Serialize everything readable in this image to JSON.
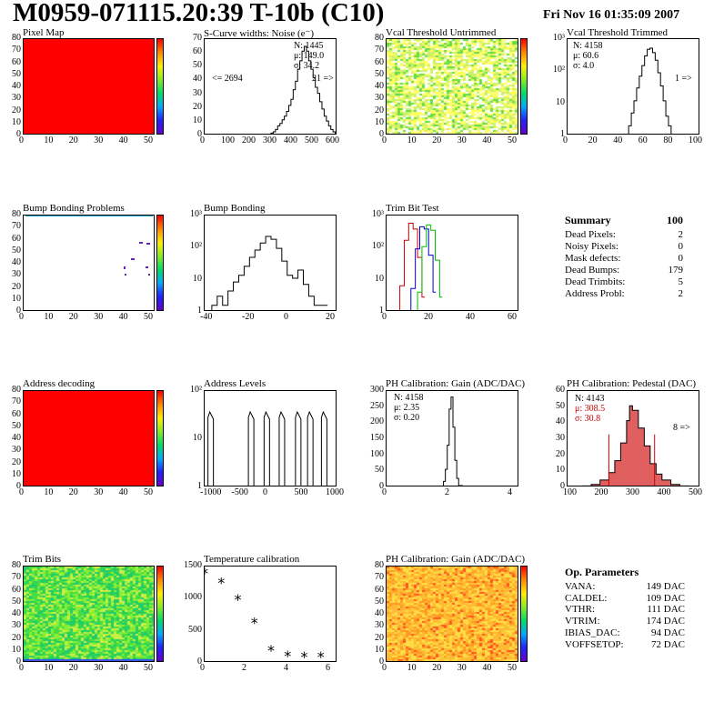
{
  "header": {
    "title": "M0959-071115.20:39 T-10b (C10)",
    "date": "Fri Nov 16 01:35:09 2007"
  },
  "panels": {
    "pixel_map": {
      "title": "Pixel Map"
    },
    "scurve": {
      "title": "S-Curve widths: Noise (e⁻)",
      "stats": [
        "N: 1445",
        "μ: 149.0",
        "σ: 34.2"
      ],
      "under": "<= 2694",
      "over": "21 =>"
    },
    "vcal_untrimmed": {
      "title": "Vcal Threshold Untrimmed"
    },
    "vcal_trimmed": {
      "title": "Vcal Threshold Trimmed",
      "stats": [
        "N: 4158",
        "μ: 60.6",
        "σ: 4.0"
      ],
      "over": "1 =>"
    },
    "bump_problems": {
      "title": "Bump Bonding Problems"
    },
    "bump_bonding": {
      "title": "Bump Bonding"
    },
    "trim_bit_test": {
      "title": "Trim Bit Test"
    },
    "address_decoding": {
      "title": "Address decoding"
    },
    "address_levels": {
      "title": "Address Levels"
    },
    "ph_gain": {
      "title": "PH Calibration: Gain (ADC/DAC)",
      "stats": [
        "N: 4158",
        "μ: 2.35",
        "σ: 0.20"
      ]
    },
    "ph_pedestal": {
      "title": "PH Calibration: Pedestal (DAC)",
      "stats": [
        "N: 4143"
      ],
      "stats_red": [
        "μ: 308.5",
        "σ: 30.8"
      ],
      "over": "8 =>"
    },
    "trim_bits": {
      "title": "Trim Bits"
    },
    "temperature": {
      "title": "Temperature calibration"
    },
    "ph_gain_map": {
      "title": "PH Calibration: Gain (ADC/DAC)"
    }
  },
  "summary": {
    "title": "Summary",
    "total": "100",
    "rows": [
      {
        "label": "Dead Pixels:",
        "value": "2"
      },
      {
        "label": "Noisy Pixels:",
        "value": "0"
      },
      {
        "label": "Mask defects:",
        "value": "0"
      },
      {
        "label": "Dead Bumps:",
        "value": "179"
      },
      {
        "label": "Dead Trimbits:",
        "value": "5"
      },
      {
        "label": "Address Probl:",
        "value": "2"
      }
    ]
  },
  "op_parameters": {
    "title": "Op. Parameters",
    "rows": [
      {
        "label": "VANA:",
        "value": "149 DAC"
      },
      {
        "label": "CALDEL:",
        "value": "109 DAC"
      },
      {
        "label": "VTHR:",
        "value": "111 DAC"
      },
      {
        "label": "VTRIM:",
        "value": "174 DAC"
      },
      {
        "label": "IBIAS_DAC:",
        "value": "94 DAC"
      },
      {
        "label": "VOFFSETOP:",
        "value": "72 DAC"
      }
    ]
  },
  "colors": {
    "map_red": "#ff0000",
    "hist_line": "#000000",
    "trim_red": "#d00000",
    "trim_blue": "#0000dd",
    "trim_green": "#00bb00",
    "pedestal_fill": "#e06060"
  },
  "chart_data": [
    {
      "id": "pixel_map",
      "type": "heatmap",
      "title": "Pixel Map",
      "xlim": [
        0,
        52
      ],
      "ylim": [
        0,
        80
      ],
      "x_ticks": [
        "0",
        "10",
        "20",
        "30",
        "40",
        "50"
      ],
      "y_ticks": [
        "0",
        "10",
        "20",
        "30",
        "40",
        "50",
        "60",
        "70",
        "80"
      ],
      "palette_ticks": [
        "1",
        "2",
        "3",
        "4",
        "5",
        "6",
        "7",
        "8",
        "9",
        "10"
      ],
      "value": "uniform 10 (all pixels responding)"
    },
    {
      "id": "scurve",
      "type": "line",
      "title": "S-Curve widths: Noise (e⁻)",
      "xlim": [
        0,
        600
      ],
      "ylim": [
        0,
        80
      ],
      "x_ticks": [
        "0",
        "100",
        "200",
        "300",
        "400",
        "500",
        "600"
      ],
      "y_ticks": [
        "0",
        "10",
        "20",
        "30",
        "40",
        "50",
        "60",
        "70"
      ],
      "x": [
        290,
        300,
        310,
        320,
        330,
        340,
        350,
        360,
        370,
        380,
        390,
        400,
        410,
        420,
        430,
        440,
        450,
        460,
        470,
        480,
        490,
        500,
        510,
        520,
        530,
        540,
        550,
        560,
        570,
        580,
        590,
        600
      ],
      "y": [
        0,
        2,
        3,
        5,
        8,
        10,
        13,
        16,
        20,
        25,
        30,
        38,
        45,
        55,
        62,
        70,
        74,
        70,
        62,
        55,
        48,
        40,
        35,
        28,
        22,
        16,
        12,
        8,
        5,
        3,
        2,
        0
      ]
    },
    {
      "id": "vcal_untrimmed",
      "type": "heatmap",
      "title": "Vcal Threshold Untrimmed",
      "xlim": [
        0,
        52
      ],
      "ylim": [
        0,
        80
      ],
      "x_ticks": [
        "0",
        "10",
        "20",
        "30",
        "40",
        "50"
      ],
      "y_ticks": [
        "0",
        "10",
        "20",
        "30",
        "40",
        "50",
        "60",
        "70",
        "80"
      ],
      "palette_ticks": [
        "20",
        "40",
        "60",
        "80",
        "100",
        "120",
        "140"
      ]
    },
    {
      "id": "vcal_trimmed",
      "type": "line",
      "title": "Vcal Threshold Trimmed",
      "log_y": true,
      "xlim": [
        0,
        100
      ],
      "ylim": [
        1,
        1000
      ],
      "x_ticks": [
        "0",
        "20",
        "40",
        "60",
        "80",
        "100"
      ],
      "y_ticks": [
        "1",
        "10",
        "10²",
        "10³"
      ],
      "x": [
        44,
        46,
        48,
        50,
        52,
        54,
        56,
        58,
        60,
        62,
        64,
        66,
        68,
        70,
        72,
        74,
        76,
        78
      ],
      "y": [
        1,
        2,
        5,
        12,
        30,
        70,
        150,
        300,
        480,
        520,
        380,
        220,
        90,
        35,
        12,
        4,
        2,
        1
      ]
    },
    {
      "id": "bump_problems",
      "type": "heatmap",
      "title": "Bump Bonding Problems",
      "xlim": [
        0,
        52
      ],
      "ylim": [
        0,
        80
      ],
      "x_ticks": [
        "0",
        "10",
        "20",
        "30",
        "40",
        "50"
      ],
      "y_ticks": [
        "0",
        "10",
        "20",
        "30",
        "40",
        "50",
        "60",
        "70",
        "80"
      ],
      "palette_ticks": [
        "-5",
        "-4",
        "-3",
        "-2",
        "-1",
        "0",
        "1",
        "2",
        "3",
        "4"
      ]
    },
    {
      "id": "bump_bonding",
      "type": "line",
      "title": "Bump Bonding",
      "log_y": true,
      "xlim": [
        -47,
        27
      ],
      "ylim": [
        0.6,
        1000
      ],
      "x_ticks": [
        "-40",
        "-20",
        "0",
        "20"
      ],
      "y_ticks": [
        "1",
        "10",
        "10²",
        "10³"
      ],
      "x": [
        -43,
        -40,
        -37,
        -34,
        -31,
        -28,
        -25,
        -22,
        -19,
        -16,
        -13,
        -10,
        -7,
        -4,
        -1,
        2,
        5,
        8,
        11,
        14,
        17,
        20
      ],
      "y": [
        1,
        2,
        1,
        3,
        6,
        10,
        20,
        40,
        70,
        120,
        200,
        160,
        80,
        30,
        10,
        8,
        15,
        5,
        2,
        1,
        1,
        1
      ]
    },
    {
      "id": "trim_bit_test",
      "type": "line",
      "title": "Trim Bit Test",
      "log_y": true,
      "xlim": [
        0,
        60
      ],
      "ylim": [
        0.6,
        1500
      ],
      "x_ticks": [
        "0",
        "20",
        "40",
        "60"
      ],
      "y_ticks": [
        "1",
        "10",
        "10²",
        "10³"
      ],
      "series": [
        {
          "color": "red",
          "x": [
            6,
            8,
            10,
            12,
            14,
            16
          ],
          "y": [
            5,
            200,
            800,
            500,
            50,
            2
          ]
        },
        {
          "color": "blue",
          "x": [
            11,
            13,
            15,
            17,
            19,
            21
          ],
          "y": [
            4,
            100,
            600,
            500,
            60,
            3
          ]
        },
        {
          "color": "green",
          "x": [
            14,
            16,
            18,
            20,
            22,
            24
          ],
          "y": [
            3,
            120,
            700,
            450,
            40,
            2
          ]
        }
      ]
    },
    {
      "id": "address_decoding",
      "type": "heatmap",
      "title": "Address decoding",
      "xlim": [
        0,
        52
      ],
      "ylim": [
        0,
        80
      ],
      "x_ticks": [
        "0",
        "10",
        "20",
        "30",
        "40",
        "50"
      ],
      "y_ticks": [
        "0",
        "10",
        "20",
        "30",
        "40",
        "50",
        "60",
        "70",
        "80"
      ],
      "palette_ticks": [
        "0.1",
        "0.2",
        "0.3",
        "0.4",
        "0.5",
        "0.6",
        "0.7",
        "0.8",
        "0.9"
      ]
    },
    {
      "id": "address_levels",
      "type": "line",
      "title": "Address Levels",
      "log_y": true,
      "xlim": [
        -1100,
        1100
      ],
      "ylim": [
        0.6,
        1000
      ],
      "x_ticks": [
        "-1000",
        "-500",
        "0",
        "500",
        "1000"
      ],
      "y_ticks": [
        "1",
        "10",
        "10²"
      ],
      "peaks_x": [
        -1000,
        -330,
        -70,
        180,
        450,
        650,
        880
      ],
      "peak_height": 200
    },
    {
      "id": "ph_gain",
      "type": "line",
      "title": "PH Calibration: Gain (ADC/DAC)",
      "xlim": [
        -1,
        6
      ],
      "ylim": [
        0,
        320
      ],
      "x_ticks": [
        "0",
        "2",
        "4"
      ],
      "y_ticks": [
        "0",
        "50",
        "100",
        "150",
        "200",
        "250",
        "300"
      ],
      "x": [
        1.6,
        1.8,
        2.0,
        2.1,
        2.2,
        2.3,
        2.4,
        2.5,
        2.6,
        2.7,
        2.8,
        3.0
      ],
      "y": [
        0,
        4,
        20,
        60,
        140,
        260,
        300,
        200,
        90,
        30,
        6,
        0
      ]
    },
    {
      "id": "ph_pedestal",
      "type": "area",
      "title": "PH Calibration: Pedestal (DAC)",
      "xlim": [
        100,
        550
      ],
      "ylim": [
        0,
        65
      ],
      "x_ticks": [
        "100",
        "200",
        "300",
        "400",
        "500"
      ],
      "y_ticks": [
        "0",
        "10",
        "20",
        "30",
        "40",
        "50",
        "60"
      ],
      "x": [
        150,
        180,
        210,
        240,
        260,
        280,
        300,
        310,
        320,
        340,
        360,
        380,
        400,
        420,
        450,
        480,
        510
      ],
      "y": [
        1,
        2,
        5,
        10,
        18,
        30,
        45,
        55,
        52,
        40,
        28,
        16,
        9,
        5,
        2,
        1,
        0
      ],
      "fit_band": [
        240,
        395
      ]
    },
    {
      "id": "trim_bits",
      "type": "heatmap",
      "title": "Trim Bits",
      "xlim": [
        0,
        52
      ],
      "ylim": [
        0,
        80
      ],
      "x_ticks": [
        "0",
        "10",
        "20",
        "30",
        "40",
        "50"
      ],
      "y_ticks": [
        "0",
        "10",
        "20",
        "30",
        "40",
        "50",
        "60",
        "70",
        "80"
      ],
      "palette_ticks": [
        "2",
        "4",
        "6",
        "8",
        "10",
        "12",
        "14",
        "16"
      ]
    },
    {
      "id": "temperature",
      "type": "scatter",
      "title": "Temperature calibration",
      "xlim": [
        0,
        8
      ],
      "ylim": [
        -200,
        1800
      ],
      "x_ticks": [
        "0",
        "2",
        "4",
        "6"
      ],
      "y_ticks": [
        "0",
        "500",
        "1000",
        "1500"
      ],
      "x": [
        0,
        1,
        2,
        3,
        4,
        5,
        6,
        7
      ],
      "y": [
        1650,
        1450,
        1100,
        620,
        50,
        -70,
        -90,
        -90
      ]
    },
    {
      "id": "ph_gain_map",
      "type": "heatmap",
      "title": "PH Calibration: Gain (ADC/DAC)",
      "xlim": [
        0,
        52
      ],
      "ylim": [
        0,
        80
      ],
      "x_ticks": [
        "0",
        "10",
        "20",
        "30",
        "40",
        "50"
      ],
      "y_ticks": [
        "0",
        "10",
        "20",
        "30",
        "40",
        "50",
        "60",
        "70",
        "80"
      ],
      "palette_ticks": [
        "0.5",
        "1",
        "1.5",
        "2",
        "2.5",
        "3"
      ]
    }
  ]
}
